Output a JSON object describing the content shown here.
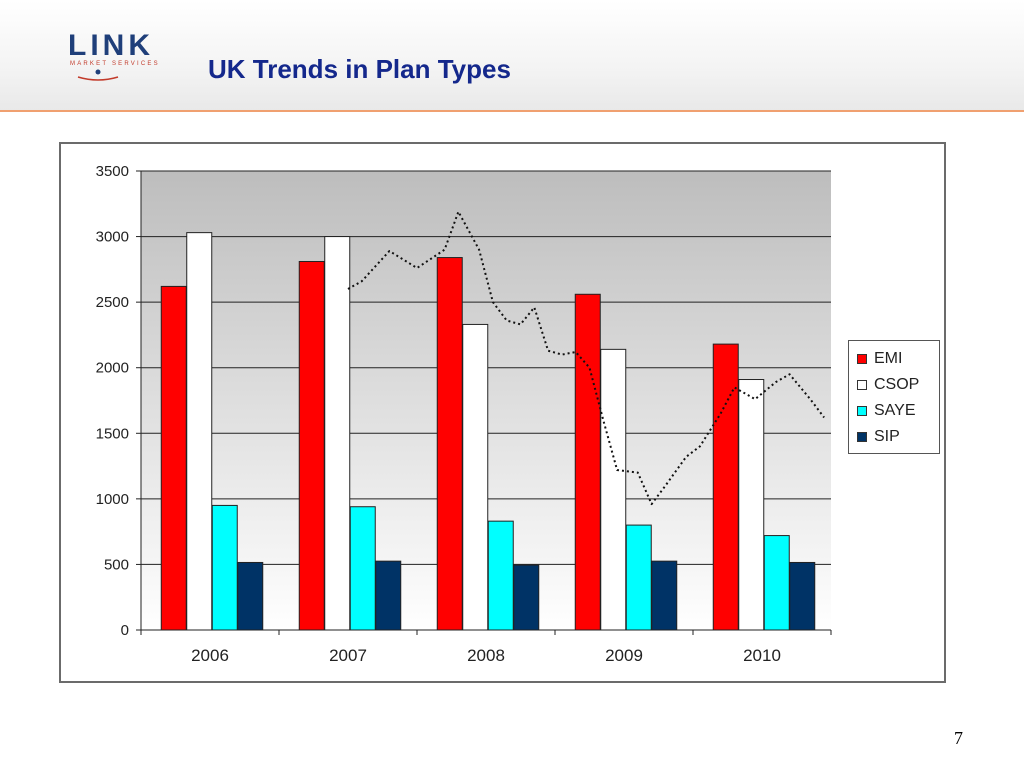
{
  "header": {
    "logo_text": "LINK",
    "logo_sub": "MARKET SERVICES",
    "title": "UK Trends in Plan Types"
  },
  "page_number": "7",
  "colors": {
    "EMI": "#ff0000",
    "CSOP": "#ffffff",
    "SAYE": "#00ffff",
    "SIP": "#003366",
    "header_rule": "#f0a070",
    "title": "#14288c"
  },
  "chart_data": {
    "type": "bar",
    "categories": [
      "2006",
      "2007",
      "2008",
      "2009",
      "2010"
    ],
    "series": [
      {
        "name": "EMI",
        "values": [
          2620,
          2810,
          2840,
          2560,
          2180
        ]
      },
      {
        "name": "CSOP",
        "values": [
          3030,
          3000,
          2330,
          2140,
          1910
        ]
      },
      {
        "name": "SAYE",
        "values": [
          950,
          940,
          830,
          800,
          720
        ]
      },
      {
        "name": "SIP",
        "values": [
          515,
          525,
          495,
          525,
          515
        ]
      }
    ],
    "yticks": [
      0,
      500,
      1000,
      1500,
      2000,
      2500,
      3000,
      3500
    ],
    "ylim": [
      0,
      3500
    ],
    "grid": true,
    "legend": "right",
    "overlay_line": {
      "style": "dotted",
      "x": [
        2007.0,
        2007.1,
        2007.3,
        2007.5,
        2007.7,
        2007.8,
        2007.95,
        2008.05,
        2008.15,
        2008.25,
        2008.35,
        2008.45,
        2008.55,
        2008.65,
        2008.75,
        2008.85,
        2008.95,
        2009.1,
        2009.2,
        2009.3,
        2009.45,
        2009.55,
        2009.7,
        2009.8,
        2009.95,
        2010.1,
        2010.2,
        2010.35,
        2010.45
      ],
      "y": [
        2600,
        2660,
        2890,
        2760,
        2900,
        3190,
        2900,
        2500,
        2360,
        2330,
        2460,
        2130,
        2100,
        2120,
        2000,
        1600,
        1220,
        1200,
        960,
        1100,
        1320,
        1400,
        1650,
        1850,
        1760,
        1890,
        1950,
        1760,
        1620
      ]
    }
  }
}
